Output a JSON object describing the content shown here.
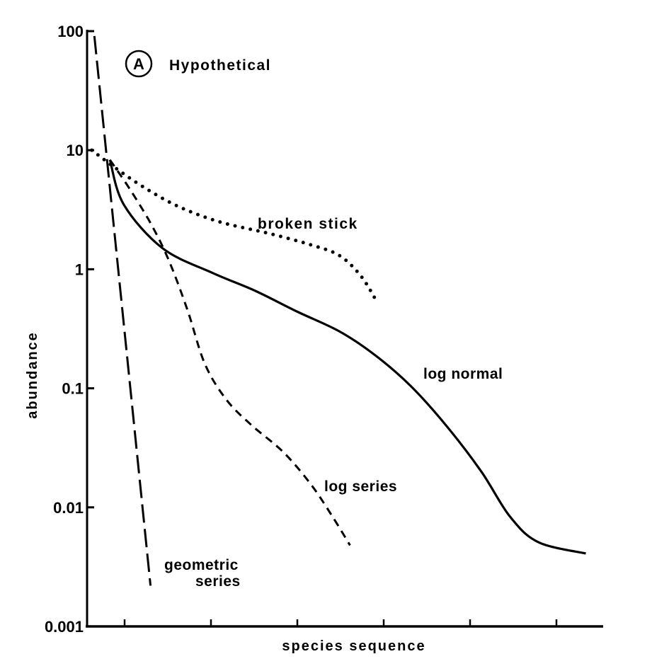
{
  "chart_data": {
    "type": "line",
    "title": "Hypothetical",
    "panel_label": "A",
    "xlabel": "species sequence",
    "ylabel": "abundance",
    "yscale": "log",
    "ylim": [
      0.001,
      100
    ],
    "yticks": [
      {
        "value": 100,
        "label": "100"
      },
      {
        "value": 10,
        "label": "10"
      },
      {
        "value": 1,
        "label": "1"
      },
      {
        "value": 0.1,
        "label": "0.1"
      },
      {
        "value": 0.01,
        "label": "0.01"
      },
      {
        "value": 0.001,
        "label": "0.001"
      }
    ],
    "xlim": [
      0.57,
      6.55
    ],
    "xticks": [
      1,
      2,
      3,
      4,
      5,
      6
    ],
    "xtick_labels_shown": false,
    "grid": false,
    "legend": "none; curves labelled directly",
    "series": [
      {
        "name": "geometric series",
        "label_lines": [
          "geometric",
          "series"
        ],
        "style": "long-dash",
        "x": [
          0.65,
          1.3
        ],
        "y": [
          91,
          0.0022
        ]
      },
      {
        "name": "log series",
        "style": "short-dash",
        "x": [
          0.83,
          1.07,
          1.32,
          1.52,
          1.73,
          1.93,
          2.18,
          2.47,
          2.84,
          3.16,
          3.41,
          3.61
        ],
        "y": [
          8.3,
          4.6,
          2.3,
          1.15,
          0.45,
          0.16,
          0.08,
          0.049,
          0.029,
          0.0155,
          0.0083,
          0.0048
        ]
      },
      {
        "name": "log normal",
        "style": "solid",
        "x": [
          0.83,
          0.99,
          1.44,
          2.02,
          2.51,
          3.0,
          3.49,
          3.9,
          4.31,
          4.72,
          5.13,
          5.46,
          5.79,
          6.34
        ],
        "y": [
          8.3,
          3.5,
          1.5,
          0.93,
          0.66,
          0.44,
          0.3,
          0.19,
          0.105,
          0.049,
          0.02,
          0.0084,
          0.0051,
          0.0041
        ]
      },
      {
        "name": "broken stick",
        "style": "dotted",
        "x": [
          0.62,
          0.87,
          1.2,
          1.61,
          2.1,
          2.67,
          3.16,
          3.49,
          3.74,
          3.93
        ],
        "y": [
          10,
          7.3,
          5,
          3.4,
          2.5,
          2.0,
          1.6,
          1.3,
          0.87,
          0.52
        ]
      }
    ],
    "colors": {
      "ink": "#000000",
      "background": "#ffffff"
    }
  }
}
